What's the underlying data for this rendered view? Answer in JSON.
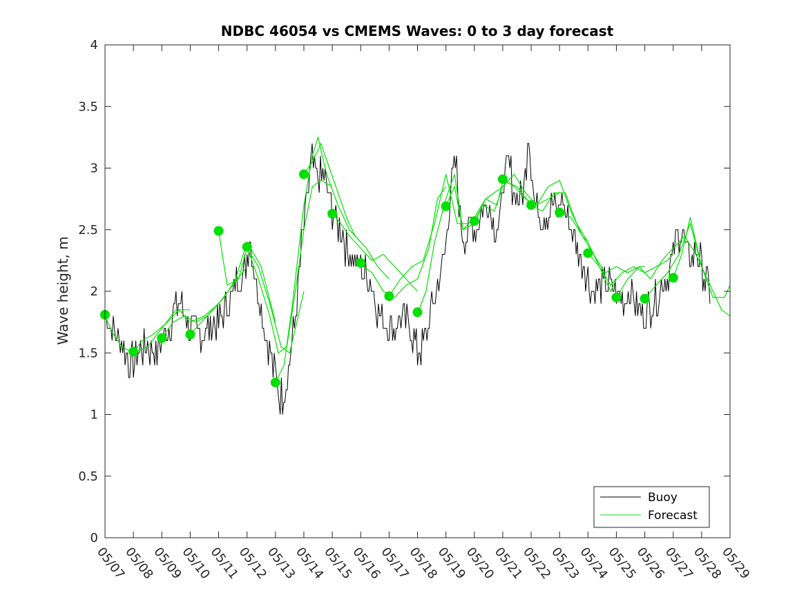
{
  "chart_data": {
    "type": "line",
    "title": "NDBC 46054 vs CMEMS Waves: 0 to 3 day forecast",
    "ylabel": "Wave height, m",
    "xlabel": "",
    "ylim": [
      0,
      4
    ],
    "yticks": [
      "0",
      "0.5",
      "1",
      "1.5",
      "2",
      "2.5",
      "3",
      "3.5",
      "4"
    ],
    "xlim": [
      0,
      22
    ],
    "xtick_labels": [
      "05/07",
      "05/08",
      "05/09",
      "05/10",
      "05/11",
      "05/12",
      "05/13",
      "05/14",
      "05/15",
      "05/16",
      "05/17",
      "05/18",
      "05/19",
      "05/20",
      "05/21",
      "05/22",
      "05/23",
      "05/24",
      "05/25",
      "05/26",
      "05/27",
      "05/28",
      "05/29"
    ],
    "legend": {
      "placement": "bottom-right",
      "entries": [
        "Buoy",
        "Forecast"
      ]
    },
    "colors": {
      "buoy": "#000000",
      "forecast": "#00e000",
      "axis": "#262626"
    },
    "buoy_anchors": [
      [
        0.0,
        1.8
      ],
      [
        0.3,
        1.7
      ],
      [
        0.6,
        1.55
      ],
      [
        0.9,
        1.4
      ],
      [
        1.2,
        1.5
      ],
      [
        1.5,
        1.55
      ],
      [
        1.8,
        1.5
      ],
      [
        2.0,
        1.6
      ],
      [
        2.3,
        1.75
      ],
      [
        2.5,
        1.9
      ],
      [
        2.8,
        1.85
      ],
      [
        3.0,
        1.7
      ],
      [
        3.3,
        1.65
      ],
      [
        3.6,
        1.7
      ],
      [
        4.0,
        1.75
      ],
      [
        4.3,
        1.9
      ],
      [
        4.6,
        2.05
      ],
      [
        4.9,
        2.15
      ],
      [
        5.1,
        2.45
      ],
      [
        5.3,
        2.1
      ],
      [
        5.5,
        1.85
      ],
      [
        5.7,
        1.6
      ],
      [
        5.9,
        1.4
      ],
      [
        6.1,
        1.2
      ],
      [
        6.2,
        1.15
      ],
      [
        6.35,
        1.2
      ],
      [
        6.5,
        1.45
      ],
      [
        6.7,
        1.8
      ],
      [
        6.9,
        2.3
      ],
      [
        7.1,
        2.75
      ],
      [
        7.3,
        3.05
      ],
      [
        7.5,
        2.9
      ],
      [
        7.7,
        2.95
      ],
      [
        7.9,
        2.75
      ],
      [
        8.1,
        2.6
      ],
      [
        8.3,
        2.5
      ],
      [
        8.5,
        2.35
      ],
      [
        8.7,
        2.25
      ],
      [
        9.0,
        2.2
      ],
      [
        9.3,
        2.1
      ],
      [
        9.6,
        1.85
      ],
      [
        9.9,
        1.75
      ],
      [
        10.2,
        1.7
      ],
      [
        10.5,
        1.8
      ],
      [
        10.8,
        1.65
      ],
      [
        11.0,
        1.5
      ],
      [
        11.2,
        1.55
      ],
      [
        11.4,
        1.75
      ],
      [
        11.6,
        1.95
      ],
      [
        11.8,
        2.1
      ],
      [
        12.0,
        2.4
      ],
      [
        12.2,
        2.9
      ],
      [
        12.35,
        3.05
      ],
      [
        12.5,
        2.6
      ],
      [
        12.7,
        2.4
      ],
      [
        12.9,
        2.6
      ],
      [
        13.1,
        2.5
      ],
      [
        13.3,
        2.7
      ],
      [
        13.5,
        2.7
      ],
      [
        13.7,
        2.55
      ],
      [
        13.9,
        2.5
      ],
      [
        14.0,
        2.85
      ],
      [
        14.2,
        3.05
      ],
      [
        14.4,
        2.8
      ],
      [
        14.6,
        2.75
      ],
      [
        14.8,
        2.9
      ],
      [
        14.9,
        3.35
      ],
      [
        15.1,
        2.75
      ],
      [
        15.3,
        2.65
      ],
      [
        15.5,
        2.6
      ],
      [
        15.7,
        2.7
      ],
      [
        15.9,
        2.65
      ],
      [
        16.1,
        2.75
      ],
      [
        16.3,
        2.6
      ],
      [
        16.5,
        2.45
      ],
      [
        16.7,
        2.3
      ],
      [
        16.9,
        2.2
      ],
      [
        17.1,
        2.05
      ],
      [
        17.3,
        2.0
      ],
      [
        17.5,
        2.05
      ],
      [
        17.7,
        2.05
      ],
      [
        17.9,
        2.0
      ],
      [
        18.1,
        1.95
      ],
      [
        18.3,
        1.95
      ],
      [
        18.5,
        2.0
      ],
      [
        18.7,
        1.9
      ],
      [
        18.9,
        1.8
      ],
      [
        19.1,
        1.85
      ],
      [
        19.3,
        1.9
      ],
      [
        19.5,
        2.0
      ],
      [
        19.7,
        2.1
      ],
      [
        19.9,
        2.2
      ],
      [
        20.1,
        2.4
      ],
      [
        20.3,
        2.5
      ],
      [
        20.5,
        2.3
      ],
      [
        20.7,
        2.3
      ],
      [
        20.9,
        2.3
      ],
      [
        21.1,
        2.1
      ],
      [
        21.3,
        2.0
      ]
    ],
    "forecast_runs": [
      {
        "start": 0,
        "values": [
          [
            0,
            1.8
          ],
          [
            0.3,
            1.65
          ],
          [
            0.6,
            1.55
          ],
          [
            1,
            1.5
          ],
          [
            1.5,
            1.55
          ],
          [
            2,
            1.7
          ],
          [
            2.5,
            1.85
          ],
          [
            3,
            1.85
          ]
        ]
      },
      {
        "start": 1,
        "values": [
          [
            1,
            1.5
          ],
          [
            1.3,
            1.6
          ],
          [
            1.7,
            1.65
          ],
          [
            2.2,
            1.75
          ],
          [
            2.6,
            1.85
          ],
          [
            3.0,
            1.75
          ],
          [
            3.5,
            1.8
          ],
          [
            4,
            1.9
          ]
        ]
      },
      {
        "start": 2,
        "values": [
          [
            2,
            1.62
          ],
          [
            2.4,
            1.75
          ],
          [
            2.8,
            1.8
          ],
          [
            3.2,
            1.75
          ],
          [
            3.6,
            1.8
          ],
          [
            4.0,
            1.9
          ],
          [
            4.5,
            2.05
          ],
          [
            5,
            2.2
          ]
        ]
      },
      {
        "start": 3,
        "values": [
          [
            3,
            1.65
          ],
          [
            3.4,
            1.75
          ],
          [
            3.8,
            1.85
          ],
          [
            4.2,
            1.95
          ],
          [
            4.6,
            2.1
          ],
          [
            5.0,
            2.4
          ],
          [
            5.5,
            2.2
          ],
          [
            6,
            1.75
          ]
        ]
      },
      {
        "start": 4,
        "values": [
          [
            4,
            2.49
          ],
          [
            4.3,
            2.05
          ],
          [
            4.7,
            2.1
          ],
          [
            5.0,
            2.35
          ],
          [
            5.4,
            2.2
          ],
          [
            5.8,
            1.9
          ],
          [
            6.2,
            1.55
          ],
          [
            6.5,
            1.5
          ],
          [
            7,
            2.0
          ]
        ]
      },
      {
        "start": 5,
        "values": [
          [
            5,
            2.36
          ],
          [
            5.4,
            2.1
          ],
          [
            5.8,
            1.8
          ],
          [
            6.1,
            1.5
          ],
          [
            6.4,
            1.55
          ],
          [
            6.7,
            2.0
          ],
          [
            7.0,
            2.5
          ],
          [
            7.3,
            2.85
          ],
          [
            7.6,
            2.9
          ],
          [
            8,
            2.85
          ]
        ]
      },
      {
        "start": 6,
        "values": [
          [
            6,
            1.26
          ],
          [
            6.3,
            1.4
          ],
          [
            6.6,
            1.9
          ],
          [
            7.0,
            2.7
          ],
          [
            7.3,
            3.1
          ],
          [
            7.5,
            3.25
          ],
          [
            7.8,
            2.95
          ],
          [
            8.2,
            2.7
          ],
          [
            8.6,
            2.5
          ],
          [
            9,
            2.4
          ]
        ]
      },
      {
        "start": 7,
        "values": [
          [
            7,
            2.95
          ],
          [
            7.3,
            3.05
          ],
          [
            7.6,
            3.2
          ],
          [
            7.9,
            3.0
          ],
          [
            8.2,
            2.8
          ],
          [
            8.5,
            2.6
          ],
          [
            8.8,
            2.45
          ],
          [
            9.2,
            2.35
          ],
          [
            9.6,
            2.2
          ],
          [
            10,
            2.1
          ]
        ]
      },
      {
        "start": 8,
        "values": [
          [
            8,
            2.63
          ],
          [
            8.3,
            2.55
          ],
          [
            8.6,
            2.45
          ],
          [
            9.0,
            2.35
          ],
          [
            9.4,
            2.25
          ],
          [
            9.8,
            2.3
          ],
          [
            10.2,
            2.2
          ],
          [
            10.6,
            2.1
          ],
          [
            11,
            2.0
          ]
        ]
      },
      {
        "start": 9,
        "values": [
          [
            9,
            2.22
          ],
          [
            9.4,
            2.15
          ],
          [
            9.8,
            2.0
          ],
          [
            10.2,
            1.95
          ],
          [
            10.6,
            2.05
          ],
          [
            11.0,
            2.1
          ],
          [
            11.4,
            2.35
          ],
          [
            11.7,
            2.75
          ],
          [
            12,
            2.85
          ]
        ]
      },
      {
        "start": 10,
        "values": [
          [
            10,
            1.96
          ],
          [
            10.4,
            2.1
          ],
          [
            10.8,
            2.2
          ],
          [
            11.2,
            2.25
          ],
          [
            11.6,
            2.55
          ],
          [
            12.0,
            2.95
          ],
          [
            12.4,
            2.55
          ],
          [
            12.8,
            2.55
          ],
          [
            13,
            2.6
          ]
        ]
      },
      {
        "start": 11,
        "values": [
          [
            11,
            1.82
          ],
          [
            11.3,
            2.0
          ],
          [
            11.6,
            2.4
          ],
          [
            12.0,
            2.75
          ],
          [
            12.3,
            2.95
          ],
          [
            12.6,
            2.5
          ],
          [
            13.0,
            2.6
          ],
          [
            13.4,
            2.75
          ],
          [
            14,
            2.85
          ]
        ]
      },
      {
        "start": 12,
        "values": [
          [
            12,
            2.69
          ],
          [
            12.3,
            2.85
          ],
          [
            12.6,
            2.5
          ],
          [
            13.0,
            2.55
          ],
          [
            13.4,
            2.75
          ],
          [
            13.8,
            2.7
          ],
          [
            14.0,
            2.9
          ],
          [
            14.5,
            2.85
          ],
          [
            15,
            2.7
          ]
        ]
      },
      {
        "start": 13,
        "values": [
          [
            13,
            2.57
          ],
          [
            13.3,
            2.7
          ],
          [
            13.7,
            2.65
          ],
          [
            14.0,
            2.85
          ],
          [
            14.4,
            2.95
          ],
          [
            14.8,
            2.8
          ],
          [
            15.2,
            2.7
          ],
          [
            15.6,
            2.75
          ],
          [
            16,
            2.8
          ]
        ]
      },
      {
        "start": 14,
        "values": [
          [
            14,
            2.91
          ],
          [
            14.4,
            2.85
          ],
          [
            14.8,
            2.75
          ],
          [
            15.2,
            2.7
          ],
          [
            15.6,
            2.85
          ],
          [
            16.0,
            2.9
          ],
          [
            16.4,
            2.65
          ],
          [
            16.8,
            2.45
          ],
          [
            17,
            2.4
          ]
        ]
      },
      {
        "start": 15,
        "values": [
          [
            15,
            2.7
          ],
          [
            15.4,
            2.65
          ],
          [
            15.8,
            2.8
          ],
          [
            16.2,
            2.8
          ],
          [
            16.6,
            2.55
          ],
          [
            17.0,
            2.4
          ],
          [
            17.4,
            2.2
          ],
          [
            17.8,
            2.0
          ],
          [
            18,
            2.1
          ]
        ]
      },
      {
        "start": 16,
        "values": [
          [
            16,
            2.64
          ],
          [
            16.4,
            2.6
          ],
          [
            16.8,
            2.45
          ],
          [
            17.2,
            2.3
          ],
          [
            17.6,
            2.15
          ],
          [
            18.0,
            2.2
          ],
          [
            18.4,
            2.15
          ],
          [
            18.8,
            2.2
          ],
          [
            19,
            2.2
          ]
        ]
      },
      {
        "start": 17,
        "values": [
          [
            17,
            2.31
          ],
          [
            17.4,
            2.2
          ],
          [
            17.8,
            2.05
          ],
          [
            18.2,
            2.15
          ],
          [
            18.6,
            2.2
          ],
          [
            19.0,
            2.15
          ],
          [
            19.4,
            2.2
          ],
          [
            19.8,
            2.25
          ],
          [
            20,
            2.3
          ]
        ]
      },
      {
        "start": 18,
        "values": [
          [
            18,
            1.95
          ],
          [
            18.4,
            2.1
          ],
          [
            18.8,
            2.2
          ],
          [
            19.2,
            2.1
          ],
          [
            19.6,
            2.25
          ],
          [
            20.0,
            2.35
          ],
          [
            20.4,
            2.45
          ],
          [
            20.8,
            2.3
          ],
          [
            21,
            2.2
          ]
        ]
      },
      {
        "start": 19,
        "values": [
          [
            19,
            1.94
          ],
          [
            19.4,
            2.05
          ],
          [
            19.8,
            2.15
          ],
          [
            20.2,
            2.3
          ],
          [
            20.6,
            2.55
          ],
          [
            21.0,
            2.2
          ],
          [
            21.4,
            1.95
          ],
          [
            21.8,
            1.95
          ],
          [
            22,
            2.05
          ]
        ]
      },
      {
        "start": 20,
        "values": [
          [
            20,
            2.11
          ],
          [
            20.3,
            2.3
          ],
          [
            20.6,
            2.6
          ],
          [
            21.0,
            2.2
          ],
          [
            21.4,
            2.0
          ],
          [
            21.7,
            1.85
          ],
          [
            22,
            1.8
          ]
        ]
      }
    ],
    "forecast_starts": [
      [
        0,
        1.81
      ],
      [
        1,
        1.51
      ],
      [
        2,
        1.62
      ],
      [
        3,
        1.65
      ],
      [
        4,
        2.49
      ],
      [
        5,
        2.36
      ],
      [
        6,
        1.26
      ],
      [
        7,
        2.95
      ],
      [
        8,
        2.63
      ],
      [
        9,
        2.23
      ],
      [
        10,
        1.96
      ],
      [
        11,
        1.83
      ],
      [
        12,
        2.69
      ],
      [
        13,
        2.57
      ],
      [
        14,
        2.91
      ],
      [
        15,
        2.7
      ],
      [
        16,
        2.64
      ],
      [
        17,
        2.31
      ],
      [
        18,
        1.95
      ],
      [
        19,
        1.94
      ],
      [
        20,
        2.11
      ]
    ]
  }
}
